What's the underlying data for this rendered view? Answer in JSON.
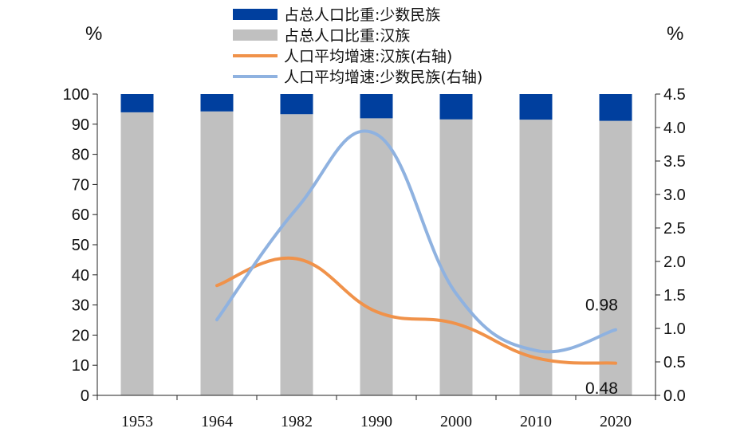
{
  "chart_data": {
    "type": "bar",
    "categories": [
      "1953",
      "1964",
      "1982",
      "1990",
      "2000",
      "2010",
      "2020"
    ],
    "y_left_unit": "%",
    "y_right_unit": "%",
    "ylim_left": [
      0,
      100
    ],
    "ylim_right": [
      0,
      4.5
    ],
    "left_ticks": [
      "0",
      "10",
      "20",
      "30",
      "40",
      "50",
      "60",
      "70",
      "80",
      "90",
      "100"
    ],
    "right_ticks": [
      "0.0",
      "0.5",
      "1.0",
      "1.5",
      "2.0",
      "2.5",
      "3.0",
      "3.5",
      "4.0",
      "4.5"
    ],
    "series": [
      {
        "name": "占总人口比重:少数民族",
        "type": "bar",
        "axis": "left",
        "color": "#003f9e",
        "values": [
          6.06,
          5.76,
          6.68,
          8.04,
          8.41,
          8.49,
          8.89
        ]
      },
      {
        "name": "占总人口比重:汉族",
        "type": "bar",
        "axis": "left",
        "color": "#c0c0c0",
        "values": [
          93.94,
          94.24,
          93.32,
          91.96,
          91.59,
          91.51,
          91.11
        ]
      },
      {
        "name": "人口平均增速:汉族(右轴)",
        "type": "line",
        "axis": "right",
        "color": "#f0924a",
        "values": [
          null,
          1.64,
          2.04,
          1.25,
          1.07,
          0.56,
          0.48
        ]
      },
      {
        "name": "人口平均增速:少数民族(右轴)",
        "type": "line",
        "axis": "right",
        "color": "#8fb2e0",
        "values": [
          null,
          1.13,
          2.79,
          3.9,
          1.52,
          0.67,
          0.98
        ]
      }
    ],
    "annotations": [
      "0.98",
      "0.48"
    ],
    "grid": false,
    "legend_position": "top-center"
  }
}
